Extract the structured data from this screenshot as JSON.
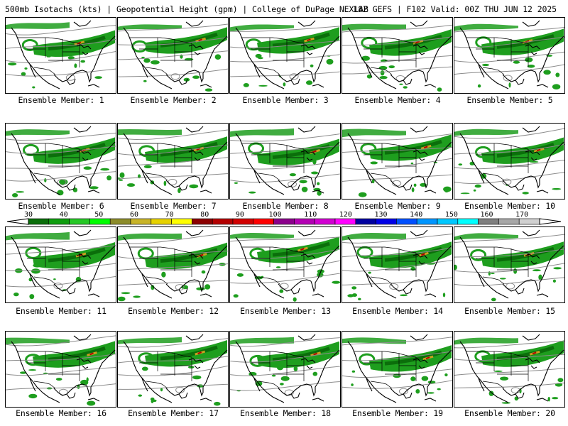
{
  "header": {
    "title_left": "500mb Isotachs (kts) | Geopotential Height (gpm) | College of DuPage NEXLAB",
    "title_right": "18Z GEFS | F102 Valid: 00Z THU JUN 12 2025"
  },
  "member_label_prefix": "Ensemble Member:",
  "members": [
    "1",
    "2",
    "3",
    "4",
    "5",
    "6",
    "7",
    "8",
    "9",
    "10",
    "11",
    "12",
    "13",
    "14",
    "15",
    "16",
    "17",
    "18",
    "19",
    "20"
  ],
  "colorbar": {
    "tick_labels": [
      "30",
      "40",
      "50",
      "60",
      "70",
      "80",
      "90",
      "100",
      "110",
      "120",
      "130",
      "140",
      "150",
      "160",
      "170"
    ],
    "colors": [
      "#0a6e0a",
      "#109e10",
      "#26c826",
      "#00ff00",
      "#8c8c2a",
      "#c8b428",
      "#e6d200",
      "#ffff00",
      "#8c0000",
      "#b40000",
      "#d20000",
      "#ff0000",
      "#8c008c",
      "#b400b4",
      "#d200d2",
      "#ff00ff",
      "#0000a0",
      "#0000e6",
      "#0050ff",
      "#0096ff",
      "#00c8ff",
      "#00ffff",
      "#808080",
      "#a8a8a8",
      "#d0d0d0"
    ],
    "arrow_color": "#ffffff"
  },
  "map_colors": {
    "background": "#ffffff",
    "coastline": "#000000",
    "height_contour": "#8c8c8c",
    "isotach_low": "#1e9e1e",
    "isotach_mid": "#0b6e0b",
    "isotach_high": "#c8a020",
    "isotach_max": "#b00000"
  }
}
